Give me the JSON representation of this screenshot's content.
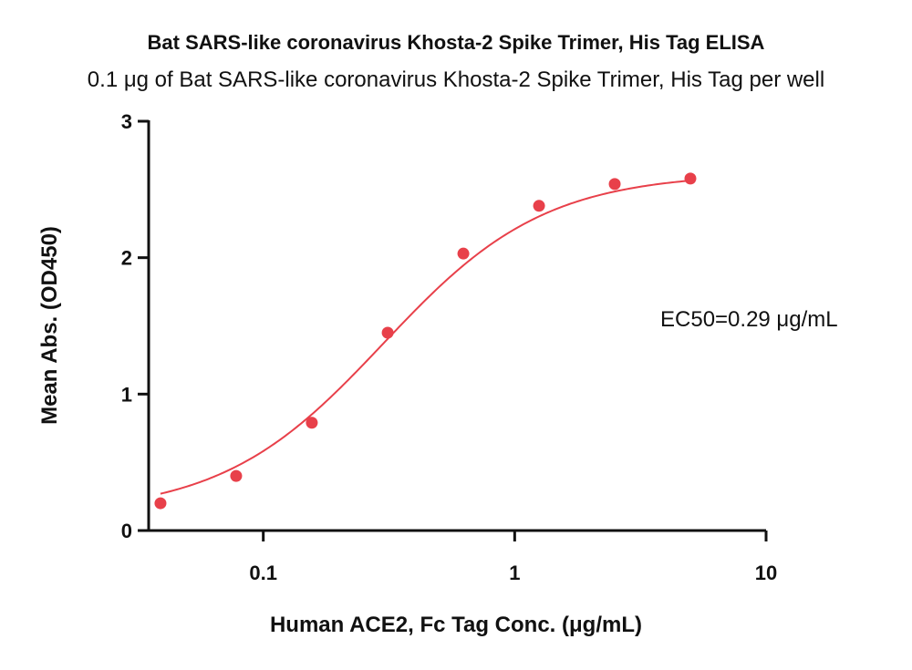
{
  "chart_data": {
    "type": "scatter",
    "title": "Bat SARS-like coronavirus Khosta-2 Spike Trimer, His Tag ELISA",
    "subtitle": "0.1 μg of Bat SARS-like coronavirus Khosta-2 Spike Trimer, His Tag per well",
    "xlabel": "Human ACE2, Fc Tag Conc. (μg/mL)",
    "ylabel": "Mean Abs. (OD450)",
    "x_scale": "log",
    "xlim": [
      0.035,
      10
    ],
    "ylim": [
      0,
      3
    ],
    "x_ticks": [
      "0.1",
      "1",
      "10"
    ],
    "x_tick_values": [
      0.1,
      1,
      10
    ],
    "y_ticks": [
      "0",
      "1",
      "2",
      "3"
    ],
    "y_tick_values": [
      0,
      1,
      2,
      3
    ],
    "grid": false,
    "annotation": "EC50=0.29 μg/mL",
    "series": [
      {
        "x": [
          0.039,
          0.078,
          0.156,
          0.3125,
          0.625,
          1.25,
          2.5,
          5
        ],
        "y": [
          0.2,
          0.4,
          0.79,
          1.45,
          2.03,
          2.38,
          2.54,
          2.58
        ],
        "color": "#e8404a",
        "fit": "4PL sigmoidal curve"
      }
    ]
  }
}
